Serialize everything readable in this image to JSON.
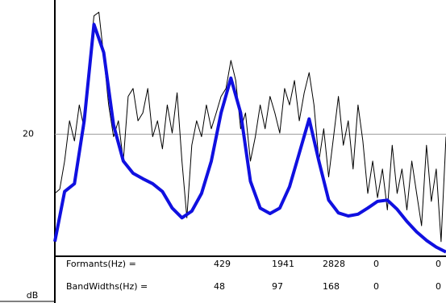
{
  "chart_data": {
    "type": "line",
    "ylabel": "dB",
    "ylim": [
      0,
      42
    ],
    "yticks": [
      20
    ],
    "grid": true,
    "series": [
      {
        "color": "#000000",
        "values": [
          10.3,
          11.0,
          15.6,
          22.2,
          18.9,
          24.8,
          20.9,
          31.4,
          39.4,
          40.0,
          32.8,
          24.8,
          19.6,
          22.2,
          15.6,
          26.2,
          27.5,
          22.2,
          23.5,
          27.5,
          19.6,
          22.2,
          17.6,
          24.8,
          20.2,
          26.8,
          15.6,
          6.3,
          18.2,
          22.2,
          19.6,
          24.8,
          20.9,
          23.5,
          26.2,
          27.5,
          32.1,
          28.8,
          20.9,
          23.5,
          15.6,
          19.6,
          24.8,
          20.9,
          26.2,
          23.5,
          20.2,
          27.5,
          24.8,
          28.8,
          22.2,
          26.8,
          30.1,
          24.8,
          15.6,
          20.9,
          13.0,
          19.6,
          26.2,
          18.2,
          22.2,
          14.3,
          24.8,
          18.9,
          10.3,
          15.6,
          9.6,
          14.3,
          7.6,
          18.2,
          10.3,
          14.3,
          7.6,
          15.6,
          10.3,
          5.0,
          18.2,
          9.0,
          14.3,
          2.4,
          19.6
        ]
      },
      {
        "color": "#1010e0",
        "values": [
          2.4,
          10.6,
          11.9,
          22.2,
          38.0,
          33.4,
          21.5,
          15.6,
          13.6,
          12.7,
          11.9,
          10.6,
          7.9,
          6.3,
          7.4,
          10.3,
          15.6,
          23.5,
          29.2,
          23.5,
          12.3,
          7.9,
          7.0,
          7.9,
          11.4,
          16.9,
          22.5,
          15.6,
          9.2,
          7.1,
          6.6,
          6.9,
          7.9,
          9.0,
          9.2,
          7.7,
          5.7,
          4.0,
          2.6,
          1.5,
          0.7
        ]
      }
    ]
  },
  "table": {
    "rows": [
      {
        "label": "Formants(Hz) =",
        "cells": [
          429,
          1941,
          2828,
          0,
          0
        ]
      },
      {
        "label": "BandWidths(Hz) =",
        "cells": [
          48,
          97,
          168,
          0,
          0
        ]
      }
    ]
  }
}
